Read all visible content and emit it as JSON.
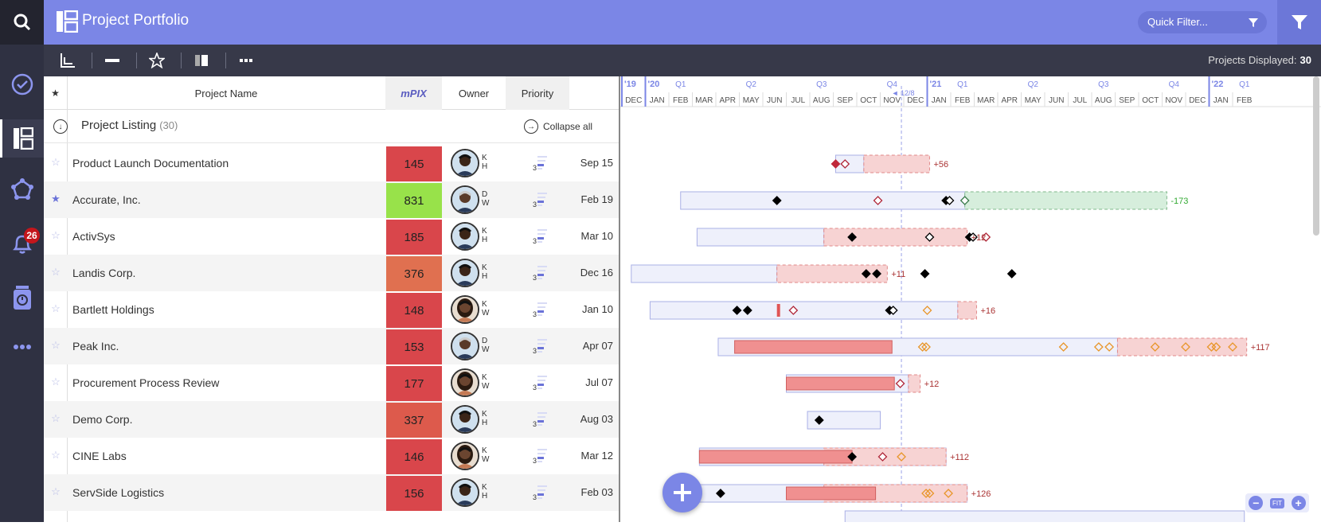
{
  "app": {
    "title": "Project Portfolio",
    "notifications_count": "26"
  },
  "nav": {
    "items": [
      {
        "name": "search-icon"
      },
      {
        "name": "check-circle-icon"
      },
      {
        "name": "portfolio-icon"
      },
      {
        "name": "network-icon"
      },
      {
        "name": "bell-icon"
      },
      {
        "name": "jar-icon"
      },
      {
        "name": "more-icon"
      }
    ]
  },
  "quick_filter": {
    "placeholder": "Quick Filter..."
  },
  "toolbar": {
    "projects_displayed_label": "Projects Displayed:",
    "projects_displayed_value": "30"
  },
  "grid": {
    "headers": {
      "star": "★",
      "name": "Project Name",
      "score": "mPIX",
      "owner": "Owner",
      "priority": "Priority"
    },
    "listing": {
      "title": "Project Listing",
      "count": "(30)",
      "collapse_label": "Collapse all"
    },
    "rows": [
      {
        "starred": false,
        "name": "Product Launch Documentation",
        "score": "145",
        "score_color": "#d9464b",
        "initials": [
          "K",
          "H"
        ],
        "avatar": "man",
        "priority": "3",
        "date": "Sep 15"
      },
      {
        "starred": true,
        "name": "Accurate, Inc.",
        "score": "831",
        "score_color": "#98e24a",
        "initials": [
          "D",
          "W"
        ],
        "avatar": "older",
        "priority": "3",
        "date": "Feb 19"
      },
      {
        "starred": false,
        "name": "ActivSys",
        "score": "185",
        "score_color": "#d9464b",
        "initials": [
          "K",
          "H"
        ],
        "avatar": "man",
        "priority": "3",
        "date": "Mar 10"
      },
      {
        "starred": false,
        "name": "Landis Corp.",
        "score": "376",
        "score_color": "#e07050",
        "initials": [
          "K",
          "H"
        ],
        "avatar": "man",
        "priority": "3",
        "date": "Dec 16"
      },
      {
        "starred": false,
        "name": "Bartlett Holdings",
        "score": "148",
        "score_color": "#d9464b",
        "initials": [
          "K",
          "W"
        ],
        "avatar": "woman",
        "priority": "3",
        "date": "Jan 10"
      },
      {
        "starred": false,
        "name": "Peak Inc.",
        "score": "153",
        "score_color": "#d9464b",
        "initials": [
          "D",
          "W"
        ],
        "avatar": "older",
        "priority": "3",
        "date": "Apr 07"
      },
      {
        "starred": false,
        "name": "Procurement Process Review",
        "score": "177",
        "score_color": "#d9464b",
        "initials": [
          "K",
          "W"
        ],
        "avatar": "woman",
        "priority": "3",
        "date": "Jul 07"
      },
      {
        "starred": false,
        "name": "Demo Corp.",
        "score": "337",
        "score_color": "#dd5a4c",
        "initials": [
          "K",
          "H"
        ],
        "avatar": "man",
        "priority": "3",
        "date": "Aug 03"
      },
      {
        "starred": false,
        "name": "CINE Labs",
        "score": "146",
        "score_color": "#d9464b",
        "initials": [
          "K",
          "W"
        ],
        "avatar": "woman",
        "priority": "3",
        "date": "Mar 12"
      },
      {
        "starred": false,
        "name": "ServSide Logistics",
        "score": "156",
        "score_color": "#d9464b",
        "initials": [
          "K",
          "H"
        ],
        "avatar": "man",
        "priority": "3",
        "date": "Feb 03"
      }
    ]
  },
  "timeline": {
    "years": [
      {
        "label": "'19",
        "month_index": 0
      },
      {
        "label": "'20",
        "month_index": 1
      },
      {
        "label": "'21",
        "month_index": 13
      },
      {
        "label": "'22",
        "month_index": 25
      }
    ],
    "quarters": [
      {
        "label": "Q1",
        "month_index": 2
      },
      {
        "label": "Q2",
        "month_index": 5
      },
      {
        "label": "Q3",
        "month_index": 8
      },
      {
        "label": "Q4",
        "month_index": 11
      },
      {
        "label": "Q1",
        "month_index": 14
      },
      {
        "label": "Q2",
        "month_index": 17
      },
      {
        "label": "Q3",
        "month_index": 20
      },
      {
        "label": "Q4",
        "month_index": 23
      },
      {
        "label": "Q1",
        "month_index": 26
      }
    ],
    "months": [
      "DEC",
      "JAN",
      "FEB",
      "MAR",
      "APR",
      "MAY",
      "JUN",
      "JUL",
      "AUG",
      "SEP",
      "OCT",
      "NOV",
      "DEC",
      "JAN",
      "FEB",
      "MAR",
      "APR",
      "MAY",
      "JUN",
      "JUL",
      "AUG",
      "SEP",
      "OCT",
      "NOV",
      "DEC",
      "JAN",
      "FEB"
    ],
    "today_label": "◄ 12/8",
    "today_month": 11.9,
    "rows": [
      {
        "plan": [
          9.1,
          10.3
        ],
        "delay": [
          10.3,
          13.1
        ],
        "delay_color": "red",
        "milestones": [
          {
            "m": 9.1,
            "t": "red"
          },
          {
            "m": 9.5,
            "t": "open-red"
          }
        ],
        "label": "+56",
        "label_color": "#a33"
      },
      {
        "plan": [
          2.5,
          14.6
        ],
        "delay": [
          14.6,
          23.2
        ],
        "delay_color": "green",
        "milestones": [
          {
            "m": 6.6,
            "t": "fill"
          },
          {
            "m": 10.9,
            "t": "open-red"
          },
          {
            "m": 13.8,
            "t": "fill"
          },
          {
            "m": 13.95,
            "t": "open"
          },
          {
            "m": 14.6,
            "t": "open-green"
          }
        ],
        "label": "-173",
        "label_color": "#3a3"
      },
      {
        "plan": [
          3.2,
          8.6
        ],
        "delay": [
          8.6,
          14.7
        ],
        "delay_color": "red",
        "milestones": [
          {
            "m": 9.8,
            "t": "fill"
          },
          {
            "m": 13.1,
            "t": "open"
          },
          {
            "m": 14.8,
            "t": "fill"
          },
          {
            "m": 14.95,
            "t": "open"
          },
          {
            "m": 15.5,
            "t": "open-red"
          }
        ],
        "label": "+12",
        "label_color": "#a33"
      },
      {
        "plan": [
          0.4,
          6.6
        ],
        "delay": [
          6.6,
          11.3
        ],
        "delay_color": "red",
        "milestones": [
          {
            "m": 10.4,
            "t": "fill"
          },
          {
            "m": 10.85,
            "t": "fill"
          },
          {
            "m": 12.9,
            "t": "fill"
          },
          {
            "m": 16.6,
            "t": "fill"
          }
        ],
        "label": "+11",
        "label_color": "#a33"
      },
      {
        "plan": [
          1.2,
          14.3
        ],
        "delay": [
          14.3,
          15.1
        ],
        "delay_color": "red",
        "actual_marks": [
          6.6
        ],
        "milestones": [
          {
            "m": 4.9,
            "t": "fill"
          },
          {
            "m": 5.35,
            "t": "fill"
          },
          {
            "m": 7.3,
            "t": "open-red"
          },
          {
            "m": 11.4,
            "t": "fill"
          },
          {
            "m": 11.55,
            "t": "open"
          },
          {
            "m": 13.0,
            "t": "open-orange"
          }
        ],
        "label": "+16",
        "label_color": "#a33"
      },
      {
        "plan": [
          4.1,
          21.1
        ],
        "delay": [
          21.1,
          26.6
        ],
        "delay_color": "red",
        "actual": [
          4.8,
          11.5
        ],
        "milestones": [
          {
            "m": 12.8,
            "t": "open-orange"
          },
          {
            "m": 12.95,
            "t": "open-orange"
          },
          {
            "m": 18.8,
            "t": "open-orange"
          },
          {
            "m": 20.3,
            "t": "open-orange"
          },
          {
            "m": 20.75,
            "t": "open-orange"
          },
          {
            "m": 22.7,
            "t": "open-orange"
          },
          {
            "m": 24.0,
            "t": "open-orange"
          },
          {
            "m": 25.1,
            "t": "open-orange"
          },
          {
            "m": 25.3,
            "t": "open-orange"
          },
          {
            "m": 26.0,
            "t": "open-orange"
          }
        ],
        "label": "+117",
        "label_color": "#a33"
      },
      {
        "plan": [
          7.0,
          12.2
        ],
        "delay": [
          12.2,
          12.7
        ],
        "delay_color": "red",
        "actual": [
          7.0,
          11.6
        ],
        "milestones": [
          {
            "m": 11.85,
            "t": "open-red"
          }
        ],
        "label": "+12",
        "label_color": "#a33"
      },
      {
        "plan": [
          7.9,
          11.0
        ],
        "milestones": [
          {
            "m": 8.4,
            "t": "fill"
          }
        ],
        "label": "",
        "label_color": "#a33"
      },
      {
        "plan": [
          3.3,
          13.8
        ],
        "delay": [
          8.6,
          13.8
        ],
        "delay_color": "red",
        "actual": [
          3.3,
          9.8
        ],
        "milestones": [
          {
            "m": 9.8,
            "t": "fill"
          },
          {
            "m": 11.1,
            "t": "open-red"
          },
          {
            "m": 11.9,
            "t": "open-orange"
          }
        ],
        "label": "+112",
        "label_color": "#a33"
      },
      {
        "plan": [
          3.3,
          14.7
        ],
        "delay": [
          8.6,
          14.7
        ],
        "delay_color": "red",
        "actual": [
          7.0,
          10.8
        ],
        "milestones": [
          {
            "m": 4.2,
            "t": "fill"
          },
          {
            "m": 12.95,
            "t": "open-orange"
          },
          {
            "m": 13.1,
            "t": "open-orange"
          },
          {
            "m": 13.9,
            "t": "open-orange"
          }
        ],
        "label": "+126",
        "label_color": "#a33"
      }
    ]
  },
  "zoom": {
    "fit_label": "FIT"
  }
}
